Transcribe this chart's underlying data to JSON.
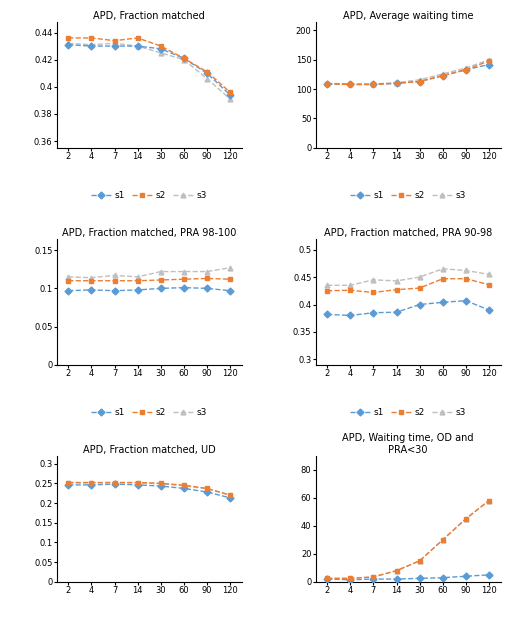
{
  "x": [
    2,
    4,
    7,
    14,
    30,
    60,
    90,
    120
  ],
  "plots": [
    {
      "title": "APD, Fraction matched",
      "ylim": [
        0.355,
        0.448
      ],
      "yticks": [
        0.36,
        0.38,
        0.4,
        0.42,
        0.44
      ],
      "s1": [
        0.431,
        0.43,
        0.43,
        0.43,
        0.428,
        0.421,
        0.41,
        0.394
      ],
      "s2": [
        0.436,
        0.436,
        0.434,
        0.436,
        0.43,
        0.421,
        0.411,
        0.396
      ],
      "s3": [
        0.432,
        0.431,
        0.432,
        0.43,
        0.425,
        0.42,
        0.406,
        0.391
      ]
    },
    {
      "title": "APD, Average waiting time",
      "ylim": [
        0,
        215
      ],
      "yticks": [
        0,
        50,
        100,
        150,
        200
      ],
      "s1": [
        109,
        108,
        108,
        110,
        113,
        123,
        133,
        142
      ],
      "s2": [
        109,
        108,
        108,
        110,
        113,
        123,
        133,
        148
      ],
      "s3": [
        110,
        109,
        109,
        111,
        116,
        126,
        136,
        150
      ]
    },
    {
      "title": "APD, Fraction matched, PRA 98-100",
      "ylim": [
        0,
        0.165
      ],
      "yticks": [
        0,
        0.05,
        0.1,
        0.15
      ],
      "s1": [
        0.097,
        0.098,
        0.097,
        0.098,
        0.1,
        0.101,
        0.1,
        0.097
      ],
      "s2": [
        0.11,
        0.11,
        0.11,
        0.11,
        0.111,
        0.112,
        0.113,
        0.112
      ],
      "s3": [
        0.115,
        0.114,
        0.117,
        0.115,
        0.122,
        0.122,
        0.122,
        0.127
      ]
    },
    {
      "title": "APD, Fraction matched, PRA 90-98",
      "ylim": [
        0.29,
        0.52
      ],
      "yticks": [
        0.3,
        0.35,
        0.4,
        0.45,
        0.5
      ],
      "s1": [
        0.382,
        0.38,
        0.385,
        0.386,
        0.4,
        0.404,
        0.407,
        0.39
      ],
      "s2": [
        0.425,
        0.426,
        0.422,
        0.427,
        0.43,
        0.447,
        0.447,
        0.436
      ],
      "s3": [
        0.435,
        0.435,
        0.445,
        0.443,
        0.45,
        0.465,
        0.462,
        0.455
      ]
    },
    {
      "title": "APD, Fraction matched, UD",
      "ylim": [
        0,
        0.32
      ],
      "yticks": [
        0,
        0.05,
        0.1,
        0.15,
        0.2,
        0.25,
        0.3
      ],
      "s1": [
        0.246,
        0.246,
        0.248,
        0.246,
        0.243,
        0.237,
        0.228,
        0.213
      ],
      "s2": [
        0.252,
        0.252,
        0.252,
        0.252,
        0.25,
        0.245,
        0.237,
        0.22
      ],
      "s3": [
        0.251,
        0.251,
        0.252,
        0.251,
        0.249,
        0.244,
        0.236,
        0.22
      ]
    },
    {
      "title": "APD, Waiting time, OD and\nPRA<30",
      "ylim": [
        0,
        90
      ],
      "yticks": [
        0,
        20,
        40,
        60,
        80
      ],
      "s1": [
        2.0,
        1.5,
        2.0,
        2.0,
        2.5,
        3.0,
        4.0,
        5.0
      ],
      "s2": [
        2.5,
        2.5,
        3.5,
        8.0,
        15.0,
        30.0,
        45.0,
        58.0
      ],
      "s3": [
        2.5,
        2.5,
        3.5,
        8.0,
        15.0,
        30.0,
        45.0,
        58.0
      ]
    }
  ],
  "s1_color": "#5B9BD5",
  "s2_color": "#ED7D31",
  "s3_color": "#BFBFBF",
  "legend_labels": [
    "s1",
    "s2",
    "s3"
  ]
}
